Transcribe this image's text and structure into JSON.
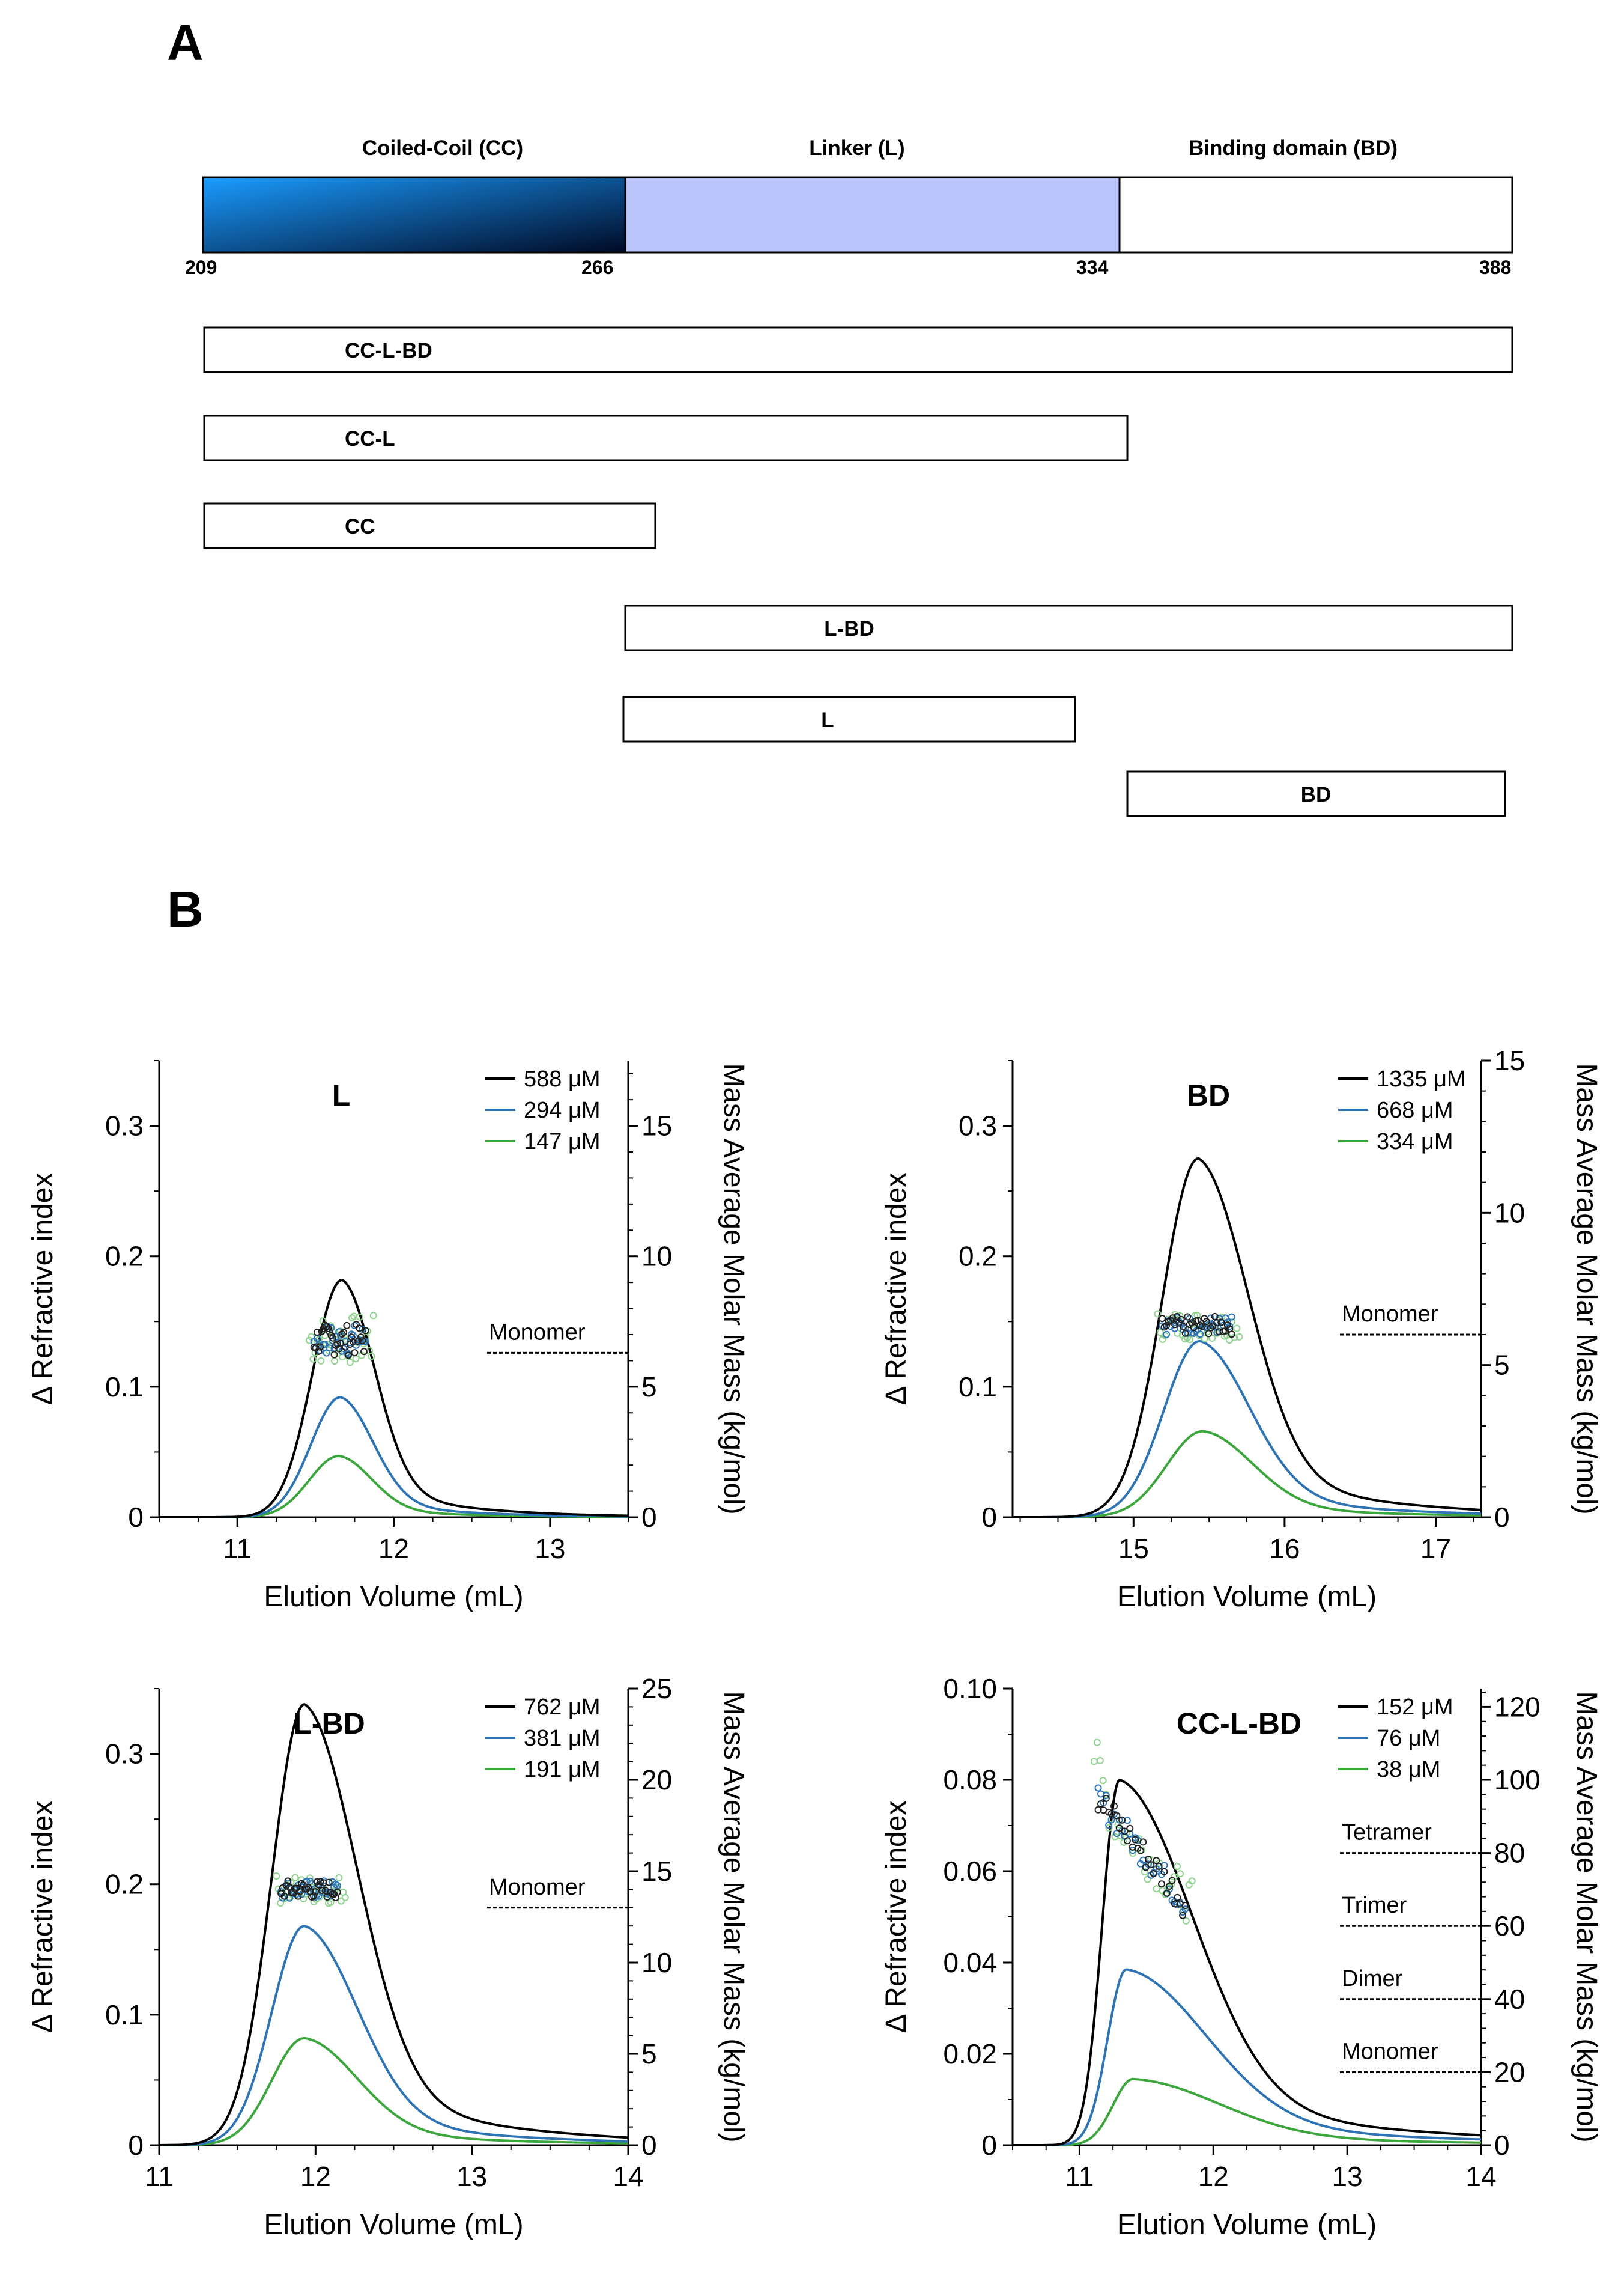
{
  "panel_a": {
    "letter": "A",
    "domains": [
      {
        "title": "Coiled-Coil (CC)",
        "start": 209,
        "end": 266,
        "fill": "gradient"
      },
      {
        "title": "Linker (L)",
        "start": 266,
        "end": 334,
        "fill": "#b8c4fa"
      },
      {
        "title": "Binding domain (BD)",
        "start": 334,
        "end": 388,
        "fill": "#ffffff"
      }
    ],
    "residue_labels": [
      "209",
      "266",
      "334",
      "388"
    ],
    "constructs": [
      {
        "label": "CC-L-BD",
        "start": 209,
        "end": 388
      },
      {
        "label": "CC-L",
        "start": 209,
        "end": 335
      },
      {
        "label": "CC",
        "start": 209,
        "end": 270
      },
      {
        "label": "L-BD",
        "start": 266,
        "end": 388
      },
      {
        "label": "L",
        "start": 266,
        "end": 327
      },
      {
        "label": "BD",
        "start": 335,
        "end": 387
      }
    ],
    "colors": {
      "cc_light": "#1a9cff",
      "cc_dark": "#000a25",
      "linker": "#b8c4fa",
      "outline": "#000000"
    }
  },
  "panel_b": {
    "letter": "B",
    "series_colors": [
      "#000000",
      "#2e74b5",
      "#3ba63b"
    ],
    "marker_colors": [
      "#222222",
      "#2e74b5",
      "#8fd38f"
    ]
  },
  "chart_data": [
    {
      "type": "line",
      "title": "L",
      "xlabel": "Elution Volume (mL)",
      "ylabel": "Δ Refractive index",
      "y2label": "Mass Average Molar Mass (kg/mol)",
      "xlim": [
        10.5,
        13.5
      ],
      "ylim": [
        0,
        0.35
      ],
      "y2lim": [
        0,
        17.5
      ],
      "xticks": [
        11,
        12,
        13
      ],
      "xtick_labels": [
        "11",
        "12",
        "13"
      ],
      "yticks": [
        0,
        0.1,
        0.2,
        0.3
      ],
      "ytick_labels": [
        "0",
        "0.1",
        "0.2",
        "0.3"
      ],
      "y2ticks": [
        0,
        5,
        10,
        15
      ],
      "y2tick_labels": [
        "0",
        "5",
        "10",
        "15"
      ],
      "legend": [
        "588 μM",
        "294 μM",
        "147 μM"
      ],
      "series": [
        {
          "name": "588 μM",
          "peak_x": 11.67,
          "peak_y": 0.182,
          "width_left": 0.19,
          "width_right": 0.21
        },
        {
          "name": "294 μM",
          "peak_x": 11.66,
          "peak_y": 0.092,
          "width_left": 0.19,
          "width_right": 0.21
        },
        {
          "name": "147 μM",
          "peak_x": 11.65,
          "peak_y": 0.047,
          "width_left": 0.19,
          "width_right": 0.21
        }
      ],
      "mass_points": {
        "x_range": [
          11.47,
          11.85
        ],
        "mass": 6.8,
        "spread": 0.6
      },
      "reference_lines": [
        {
          "label": "Monomer",
          "value": 6.3
        }
      ]
    },
    {
      "type": "line",
      "title": "BD",
      "xlabel": "Elution Volume (mL)",
      "ylabel": "Δ Refractive index",
      "y2label": "Mass Average Molar Mass (kg/mol)",
      "xlim": [
        14.2,
        17.3
      ],
      "ylim": [
        0,
        0.35
      ],
      "y2lim": [
        0,
        15
      ],
      "xticks": [
        15,
        16,
        17
      ],
      "xtick_labels": [
        "15",
        "16",
        "17"
      ],
      "yticks": [
        0,
        0.1,
        0.2,
        0.3
      ],
      "ytick_labels": [
        "0",
        "0.1",
        "0.2",
        "0.3"
      ],
      "y2ticks": [
        0,
        5,
        10,
        15
      ],
      "y2tick_labels": [
        "0",
        "5",
        "10",
        "15"
      ],
      "legend": [
        "1335 μM",
        "668 μM",
        "334 μM"
      ],
      "series": [
        {
          "name": "1335 μM",
          "peak_x": 15.43,
          "peak_y": 0.275,
          "width_left": 0.24,
          "width_right": 0.33
        },
        {
          "name": "668 μM",
          "peak_x": 15.44,
          "peak_y": 0.135,
          "width_left": 0.24,
          "width_right": 0.33
        },
        {
          "name": "334 μM",
          "peak_x": 15.46,
          "peak_y": 0.066,
          "width_left": 0.24,
          "width_right": 0.33
        }
      ],
      "mass_points": {
        "x_range": [
          15.17,
          15.68
        ],
        "mass": 6.3,
        "spread": 0.3
      },
      "reference_lines": [
        {
          "label": "Monomer",
          "value": 6.0
        }
      ]
    },
    {
      "type": "line",
      "title": "L-BD",
      "xlabel": "Elution Volume (mL)",
      "ylabel": "Δ Refractive index",
      "y2label": "Mass Average Molar Mass (kg/mol)",
      "xlim": [
        11,
        14
      ],
      "ylim": [
        0,
        0.35
      ],
      "y2lim": [
        0,
        25
      ],
      "xticks": [
        11,
        12,
        13,
        14
      ],
      "xtick_labels": [
        "11",
        "12",
        "13",
        "14"
      ],
      "yticks": [
        0,
        0.1,
        0.2,
        0.3
      ],
      "ytick_labels": [
        "0",
        "0.1",
        "0.2",
        "0.3"
      ],
      "y2ticks": [
        0,
        5,
        10,
        15,
        20,
        25
      ],
      "y2tick_labels": [
        "0",
        "5",
        "10",
        "15",
        "20",
        "25"
      ],
      "legend": [
        "762 μM",
        "381 μM",
        "191 μM"
      ],
      "series": [
        {
          "name": "762 μM",
          "peak_x": 11.93,
          "peak_y": 0.338,
          "width_left": 0.21,
          "width_right": 0.34
        },
        {
          "name": "381 μM",
          "peak_x": 11.93,
          "peak_y": 0.168,
          "width_left": 0.21,
          "width_right": 0.34
        },
        {
          "name": "191 μM",
          "peak_x": 11.93,
          "peak_y": 0.082,
          "width_left": 0.21,
          "width_right": 0.34
        }
      ],
      "mass_points": {
        "x_range": [
          11.76,
          12.17
        ],
        "mass": 14.0,
        "spread": 0.5
      },
      "reference_lines": [
        {
          "label": "Monomer",
          "value": 13.0
        }
      ]
    },
    {
      "type": "line",
      "title": "CC-L-BD",
      "xlabel": "Elution Volume (mL)",
      "ylabel": "Δ Refractive index",
      "y2label": "Mass Average Molar Mass (kg/mol)",
      "xlim": [
        10.5,
        14
      ],
      "ylim": [
        0,
        0.1
      ],
      "y2lim": [
        0,
        125
      ],
      "xticks": [
        11,
        12,
        13,
        14
      ],
      "xtick_labels": [
        "11",
        "12",
        "13",
        "14"
      ],
      "yticks": [
        0,
        0.02,
        0.04,
        0.06,
        0.08,
        0.1
      ],
      "ytick_labels": [
        "0",
        "0.02",
        "0.04",
        "0.06",
        "0.08",
        "0.10"
      ],
      "y2ticks": [
        0,
        20,
        40,
        60,
        80,
        100,
        120
      ],
      "y2tick_labels": [
        "0",
        "20",
        "40",
        "60",
        "80",
        "100",
        "120"
      ],
      "legend": [
        "152 μM",
        "76 μM",
        "38 μM"
      ],
      "series": [
        {
          "name": "152 μM",
          "peak_x": 11.3,
          "peak_y": 0.08,
          "width_left": 0.13,
          "width_right": 0.55
        },
        {
          "name": "76 μM",
          "peak_x": 11.35,
          "peak_y": 0.0385,
          "width_left": 0.14,
          "width_right": 0.6
        },
        {
          "name": "38 μM",
          "peak_x": 11.4,
          "peak_y": 0.0145,
          "width_left": 0.15,
          "width_right": 0.65
        }
      ],
      "mass_points": {
        "x_range": [
          11.12,
          11.82
        ],
        "mass_start": 95,
        "mass_end": 66,
        "spread": 4
      },
      "reference_lines": [
        {
          "label": "Tetramer",
          "value": 80
        },
        {
          "label": "Trimer",
          "value": 60
        },
        {
          "label": "Dimer",
          "value": 40
        },
        {
          "label": "Monomer",
          "value": 20
        }
      ]
    }
  ]
}
